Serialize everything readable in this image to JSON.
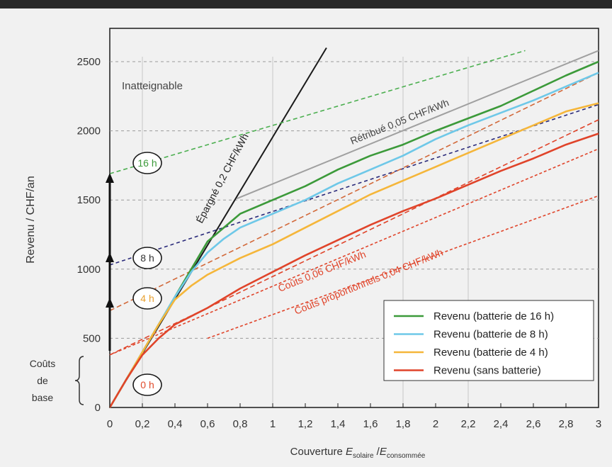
{
  "chart_data": {
    "type": "line",
    "ylabel": "Revenu / CHF/an",
    "xlabel": {
      "prefix": "Couverture ",
      "e1": "E",
      "sub1": "solaire",
      "slash": " /",
      "e2": "E",
      "sub2": "consommée"
    },
    "xlim": [
      0,
      3
    ],
    "ylim": [
      0,
      2600
    ],
    "x_ticks": [
      "0",
      "0,2",
      "0,4",
      "0,6",
      "0,8",
      "1",
      "1,2",
      "1,4",
      "1,6",
      "1,8",
      "2",
      "2,2",
      "2,4",
      "2,6",
      "2,8",
      "3"
    ],
    "y_ticks": [
      "0",
      "500",
      "1000",
      "1500",
      "2000",
      "2500"
    ],
    "grid": "dashed",
    "legend": "bottom-right",
    "annotations": {
      "unreachable": "Inatteignable",
      "saved": "Épargné 0,2 CHF/kWh",
      "retributed": "Rétribué 0,05 CHF/kWh",
      "costs_006": "Coûts 0,06 CHF/kWh",
      "costs_004": "Coûts proportionnels 0,04 CHF/kWh",
      "base_costs": [
        "Coûts",
        "de",
        "base"
      ]
    },
    "battery_labels": [
      {
        "text": "16 h",
        "y": 1700,
        "color": "#3c9a3a"
      },
      {
        "text": "8 h",
        "y": 1030,
        "color": "#333333"
      },
      {
        "text": "4 h",
        "y": 700,
        "color": "#e8a030"
      },
      {
        "text": "0 h",
        "y": 150,
        "color": "#e04a2a"
      }
    ],
    "series": [
      {
        "name": "Revenu (batterie de 16 h)",
        "color": "#3c9a3a",
        "x": [
          0,
          0.1,
          0.2,
          0.3,
          0.4,
          0.5,
          0.6,
          0.7,
          0.8,
          1.0,
          1.2,
          1.4,
          1.6,
          1.8,
          2.0,
          2.2,
          2.4,
          2.6,
          2.8,
          3.0
        ],
        "values": [
          0,
          200,
          400,
          600,
          800,
          1000,
          1200,
          1300,
          1400,
          1500,
          1600,
          1720,
          1820,
          1900,
          2000,
          2090,
          2180,
          2290,
          2400,
          2500
        ]
      },
      {
        "name": "Revenu (batterie de 8 h)",
        "color": "#6ec8e8",
        "x": [
          0,
          0.1,
          0.2,
          0.3,
          0.4,
          0.5,
          0.6,
          0.7,
          0.8,
          1.0,
          1.2,
          1.4,
          1.6,
          1.8,
          2.0,
          2.2,
          2.4,
          2.6,
          2.8,
          3.0
        ],
        "values": [
          0,
          200,
          400,
          600,
          800,
          980,
          1120,
          1220,
          1300,
          1400,
          1500,
          1620,
          1720,
          1820,
          1940,
          2040,
          2130,
          2220,
          2320,
          2420
        ]
      },
      {
        "name": "Revenu (batterie de 4 h)",
        "color": "#f5b63a",
        "x": [
          0,
          0.1,
          0.2,
          0.3,
          0.4,
          0.5,
          0.6,
          0.7,
          0.8,
          1.0,
          1.2,
          1.4,
          1.6,
          1.8,
          2.0,
          2.2,
          2.4,
          2.6,
          2.8,
          3.0
        ],
        "values": [
          0,
          200,
          400,
          600,
          780,
          880,
          960,
          1020,
          1080,
          1180,
          1300,
          1420,
          1540,
          1640,
          1740,
          1840,
          1940,
          2040,
          2140,
          2200
        ]
      },
      {
        "name": "Revenu (sans batterie)",
        "color": "#e0442a",
        "x": [
          0,
          0.1,
          0.2,
          0.3,
          0.4,
          0.5,
          0.6,
          0.8,
          1.0,
          1.2,
          1.4,
          1.6,
          1.8,
          2.0,
          2.2,
          2.4,
          2.6,
          2.8,
          3.0
        ],
        "values": [
          0,
          200,
          380,
          500,
          600,
          660,
          720,
          860,
          980,
          1100,
          1210,
          1320,
          1420,
          1510,
          1610,
          1710,
          1800,
          1900,
          1980
        ]
      }
    ],
    "reference_lines": [
      {
        "name": "Épargné 0,2 CHF/kWh",
        "color": "#1a1a1a",
        "dash": "",
        "x": [
          0,
          1.33
        ],
        "values": [
          0,
          2600
        ]
      },
      {
        "name": "Rétribué 0,05 CHF/kWh",
        "color": "#a0a0a0",
        "dash": "",
        "x": [
          0.78,
          3.0
        ],
        "values": [
          1510,
          2580
        ]
      },
      {
        "name": "16 h projection",
        "color": "#4caf50",
        "dash": "6,4",
        "x": [
          0,
          2.55
        ],
        "values": [
          1690,
          2580
        ]
      },
      {
        "name": "8 h projection",
        "color": "#2a2a7a",
        "dash": "5,4",
        "x": [
          0,
          3.0
        ],
        "values": [
          1030,
          2190
        ]
      },
      {
        "name": "4 h projection",
        "color": "#d2693a",
        "dash": "7,4",
        "x": [
          0,
          3.0
        ],
        "values": [
          700,
          2420
        ]
      },
      {
        "name": "0 h projection",
        "color": "#e0442a",
        "dash": "7,4",
        "x": [
          0,
          3.0
        ],
        "values": [
          380,
          2080
        ]
      },
      {
        "name": "Coûts 0,06 CHF/kWh",
        "color": "#e0442a",
        "dash": "4,3",
        "x": [
          0,
          3.0
        ],
        "values": [
          380,
          1870
        ]
      },
      {
        "name": "Coûts proportionnels 0,04 CHF/kWh",
        "color": "#e0442a",
        "dash": "4,3",
        "x": [
          0.6,
          3.0
        ],
        "values": [
          500,
          1530
        ]
      }
    ]
  }
}
